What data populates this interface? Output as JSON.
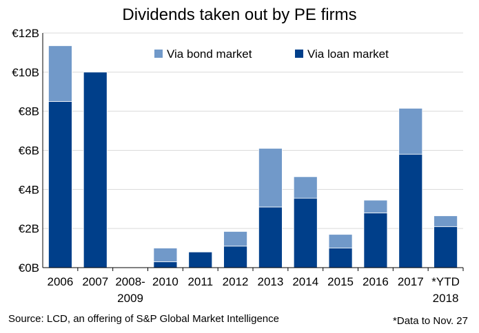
{
  "chart_data": {
    "type": "bar",
    "stacked": true,
    "title": "Dividends taken out by PE firms",
    "categories": [
      "2006",
      "2007",
      "2008-2009",
      "2010",
      "2011",
      "2012",
      "2013",
      "2014",
      "2015",
      "2016",
      "2017",
      "*YTD 2018"
    ],
    "category_lines": [
      [
        "2006"
      ],
      [
        "2007"
      ],
      [
        "2008-",
        "2009"
      ],
      [
        "2010"
      ],
      [
        "2011"
      ],
      [
        "2012"
      ],
      [
        "2013"
      ],
      [
        "2014"
      ],
      [
        "2015"
      ],
      [
        "2016"
      ],
      [
        "2017"
      ],
      [
        "*YTD",
        "2018"
      ]
    ],
    "series": [
      {
        "name": "Via loan market",
        "color": "#003f8a",
        "values": [
          8.5,
          10.0,
          0,
          0.3,
          0.8,
          1.1,
          3.1,
          3.55,
          1.0,
          2.8,
          5.8,
          2.1
        ]
      },
      {
        "name": "Via bond market",
        "color": "#7199c9",
        "values": [
          2.85,
          0,
          0,
          0.7,
          0,
          0.75,
          3.0,
          1.1,
          0.7,
          0.65,
          2.35,
          0.55
        ]
      }
    ],
    "y_ticks": [
      "€0B",
      "€2B",
      "€4B",
      "€6B",
      "€8B",
      "€10B",
      "€12B"
    ],
    "ylim": [
      0,
      12
    ],
    "grid": true,
    "legend_position": "top-right"
  },
  "source": "Source: LCD, an offering of S&P Global Market Intelligence",
  "note": "*Data to Nov. 27"
}
